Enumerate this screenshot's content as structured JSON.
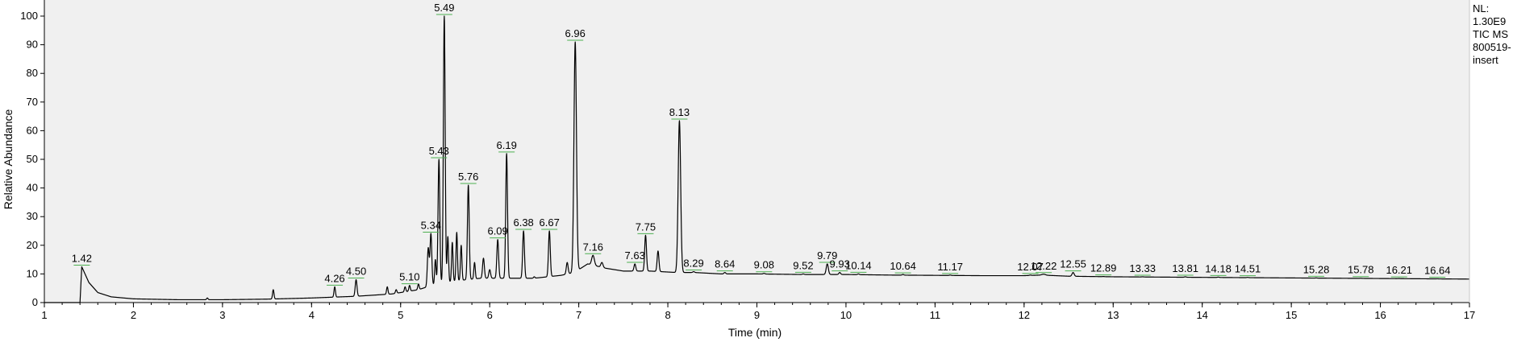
{
  "chart_data": {
    "type": "line",
    "title": "",
    "xlabel": "Time (min)",
    "ylabel": "Relative Abundance",
    "xlim": [
      1,
      17
    ],
    "ylim": [
      0,
      100
    ],
    "x_ticks": [
      1,
      2,
      3,
      4,
      5,
      6,
      7,
      8,
      9,
      10,
      11,
      12,
      13,
      14,
      15,
      16,
      17
    ],
    "y_ticks": [
      0,
      10,
      20,
      30,
      40,
      50,
      60,
      70,
      80,
      90,
      100
    ],
    "info_lines": [
      "NL:",
      "1.30E9",
      "TIC  MS",
      "800519-",
      "insert"
    ],
    "line_color": "#000000",
    "label_marker_color": "#4caf50",
    "baseline": [
      [
        1.0,
        0
      ],
      [
        1.4,
        0
      ],
      [
        1.42,
        12.5
      ],
      [
        1.5,
        7
      ],
      [
        1.6,
        3.5
      ],
      [
        1.75,
        2
      ],
      [
        2.0,
        1.3
      ],
      [
        2.5,
        1.0
      ],
      [
        3.0,
        1.0
      ],
      [
        3.5,
        1.2
      ],
      [
        4.0,
        1.6
      ],
      [
        4.5,
        2.2
      ],
      [
        4.9,
        3.0
      ],
      [
        5.2,
        4.5
      ],
      [
        5.35,
        6
      ],
      [
        5.6,
        7.5
      ],
      [
        5.9,
        8.5
      ],
      [
        6.2,
        8.5
      ],
      [
        6.5,
        8.5
      ],
      [
        6.8,
        9.5
      ],
      [
        6.95,
        10.5
      ],
      [
        7.1,
        13.5
      ],
      [
        7.3,
        12
      ],
      [
        7.5,
        11
      ],
      [
        7.8,
        11
      ],
      [
        8.1,
        10.5
      ],
      [
        8.3,
        10.5
      ],
      [
        8.6,
        10
      ],
      [
        9.0,
        10
      ],
      [
        9.5,
        9.8
      ],
      [
        10.0,
        9.8
      ],
      [
        10.5,
        9.6
      ],
      [
        11.0,
        9.5
      ],
      [
        11.5,
        9.4
      ],
      [
        12.0,
        9.4
      ],
      [
        12.2,
        9.6
      ],
      [
        12.5,
        9.2
      ],
      [
        13.0,
        9.0
      ],
      [
        14.0,
        8.8
      ],
      [
        15.0,
        8.6
      ],
      [
        16.0,
        8.4
      ],
      [
        17.0,
        8.2
      ]
    ],
    "peaks": [
      {
        "rt": 1.42,
        "height": 12.5,
        "width": 0.015,
        "label": "1.42"
      },
      {
        "rt": 2.83,
        "height": 1.6,
        "width": 0.008,
        "label": ""
      },
      {
        "rt": 3.57,
        "height": 4.5,
        "width": 0.008,
        "label": ""
      },
      {
        "rt": 4.26,
        "height": 5.5,
        "width": 0.008,
        "label": "4.26"
      },
      {
        "rt": 4.5,
        "height": 8.0,
        "width": 0.01,
        "label": "4.50"
      },
      {
        "rt": 4.85,
        "height": 5.5,
        "width": 0.008,
        "label": ""
      },
      {
        "rt": 4.95,
        "height": 4.5,
        "width": 0.008,
        "label": ""
      },
      {
        "rt": 5.05,
        "height": 5.5,
        "width": 0.008,
        "label": ""
      },
      {
        "rt": 5.1,
        "height": 6.0,
        "width": 0.008,
        "label": "5.10"
      },
      {
        "rt": 5.2,
        "height": 6.5,
        "width": 0.008,
        "label": ""
      },
      {
        "rt": 5.31,
        "height": 19.0,
        "width": 0.01,
        "label": ""
      },
      {
        "rt": 5.34,
        "height": 24.0,
        "width": 0.01,
        "label": "5.34"
      },
      {
        "rt": 5.39,
        "height": 15.0,
        "width": 0.008,
        "label": ""
      },
      {
        "rt": 5.43,
        "height": 50.0,
        "width": 0.01,
        "label": "5.43"
      },
      {
        "rt": 5.49,
        "height": 100.0,
        "width": 0.01,
        "label": "5.49"
      },
      {
        "rt": 5.53,
        "height": 23.0,
        "width": 0.008,
        "label": ""
      },
      {
        "rt": 5.58,
        "height": 21.0,
        "width": 0.008,
        "label": ""
      },
      {
        "rt": 5.63,
        "height": 24.5,
        "width": 0.008,
        "label": ""
      },
      {
        "rt": 5.68,
        "height": 20.0,
        "width": 0.008,
        "label": ""
      },
      {
        "rt": 5.76,
        "height": 41.0,
        "width": 0.01,
        "label": "5.76"
      },
      {
        "rt": 5.83,
        "height": 14.0,
        "width": 0.008,
        "label": ""
      },
      {
        "rt": 5.93,
        "height": 15.5,
        "width": 0.01,
        "label": ""
      },
      {
        "rt": 6.0,
        "height": 11.5,
        "width": 0.01,
        "label": ""
      },
      {
        "rt": 6.09,
        "height": 22.0,
        "width": 0.01,
        "label": "6.09"
      },
      {
        "rt": 6.19,
        "height": 52.0,
        "width": 0.01,
        "label": "6.19"
      },
      {
        "rt": 6.38,
        "height": 25.0,
        "width": 0.01,
        "label": "6.38"
      },
      {
        "rt": 6.5,
        "height": 9.0,
        "width": 0.008,
        "label": ""
      },
      {
        "rt": 6.67,
        "height": 25.0,
        "width": 0.01,
        "label": "6.67"
      },
      {
        "rt": 6.87,
        "height": 14.0,
        "width": 0.01,
        "label": ""
      },
      {
        "rt": 6.96,
        "height": 91.0,
        "width": 0.014,
        "label": "6.96"
      },
      {
        "rt": 7.16,
        "height": 16.5,
        "width": 0.015,
        "label": "7.16"
      },
      {
        "rt": 7.26,
        "height": 14.0,
        "width": 0.012,
        "label": ""
      },
      {
        "rt": 7.63,
        "height": 13.5,
        "width": 0.01,
        "label": "7.63"
      },
      {
        "rt": 7.75,
        "height": 23.5,
        "width": 0.01,
        "label": "7.75"
      },
      {
        "rt": 7.89,
        "height": 18.0,
        "width": 0.01,
        "label": ""
      },
      {
        "rt": 8.13,
        "height": 63.5,
        "width": 0.014,
        "label": "8.13"
      },
      {
        "rt": 8.29,
        "height": 10.8,
        "width": 0.01,
        "label": "8.29"
      },
      {
        "rt": 8.64,
        "height": 10.5,
        "width": 0.01,
        "label": "8.64"
      },
      {
        "rt": 9.08,
        "height": 10.2,
        "width": 0.01,
        "label": "9.08"
      },
      {
        "rt": 9.52,
        "height": 10.0,
        "width": 0.01,
        "label": "9.52"
      },
      {
        "rt": 9.79,
        "height": 13.5,
        "width": 0.012,
        "label": "9.79"
      },
      {
        "rt": 9.93,
        "height": 10.5,
        "width": 0.01,
        "label": "9.93"
      },
      {
        "rt": 10.14,
        "height": 10.0,
        "width": 0.01,
        "label": "10.14"
      },
      {
        "rt": 10.64,
        "height": 9.8,
        "width": 0.01,
        "label": "10.64"
      },
      {
        "rt": 11.17,
        "height": 9.6,
        "width": 0.01,
        "label": "11.17"
      },
      {
        "rt": 12.07,
        "height": 9.6,
        "width": 0.01,
        "label": "12.07"
      },
      {
        "rt": 12.22,
        "height": 9.9,
        "width": 0.02,
        "label": "12.22"
      },
      {
        "rt": 12.55,
        "height": 10.5,
        "width": 0.012,
        "label": "12.55"
      },
      {
        "rt": 12.89,
        "height": 9.1,
        "width": 0.01,
        "label": "12.89"
      },
      {
        "rt": 13.33,
        "height": 9.0,
        "width": 0.01,
        "label": "13.33"
      },
      {
        "rt": 13.81,
        "height": 9.0,
        "width": 0.01,
        "label": "13.81"
      },
      {
        "rt": 14.18,
        "height": 8.9,
        "width": 0.01,
        "label": "14.18"
      },
      {
        "rt": 14.51,
        "height": 8.8,
        "width": 0.01,
        "label": "14.51"
      },
      {
        "rt": 15.28,
        "height": 8.6,
        "width": 0.01,
        "label": "15.28"
      },
      {
        "rt": 15.78,
        "height": 8.5,
        "width": 0.01,
        "label": "15.78"
      },
      {
        "rt": 16.21,
        "height": 8.4,
        "width": 0.01,
        "label": "16.21"
      },
      {
        "rt": 16.64,
        "height": 8.3,
        "width": 0.01,
        "label": "16.64"
      }
    ]
  }
}
